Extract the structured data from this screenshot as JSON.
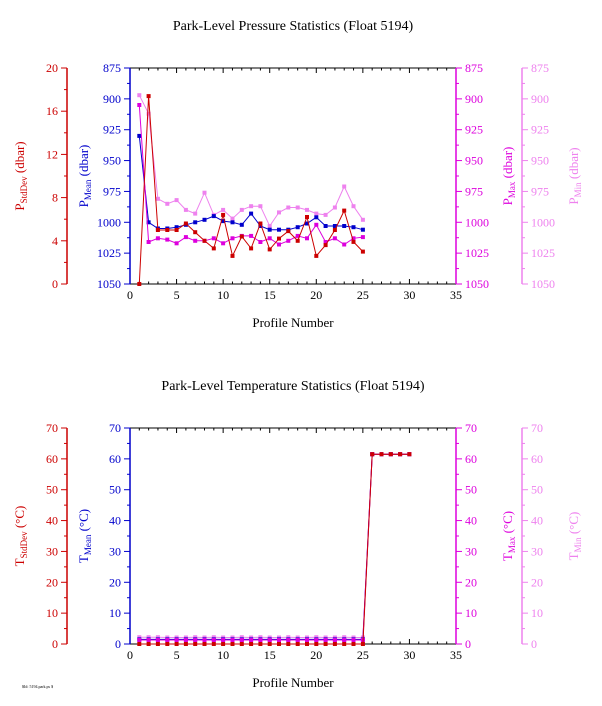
{
  "footer": "$Id: 5194.park.ps $",
  "chart_data": [
    {
      "type": "line",
      "title": "Park-Level Pressure Statistics (Float 5194)",
      "xlabel": "Profile Number",
      "xlim": [
        0,
        35
      ],
      "xticks": [
        0,
        5,
        10,
        15,
        20,
        25,
        30,
        35
      ],
      "axes": [
        {
          "key": "std",
          "label_main": "P",
          "label_sub": "StdDev",
          "label_unit": " (dbar)",
          "color": "#cc0000",
          "lim": [
            0,
            20
          ],
          "ticks": [
            0,
            4,
            8,
            12,
            16,
            20
          ],
          "reversed": false
        },
        {
          "key": "mean",
          "label_main": "P",
          "label_sub": "Mean",
          "label_unit": " (dbar)",
          "color": "#0000cc",
          "lim": [
            875,
            1050
          ],
          "ticks": [
            875,
            900,
            925,
            950,
            975,
            1000,
            1025,
            1050
          ],
          "reversed": true
        },
        {
          "key": "max",
          "label_main": "P",
          "label_sub": "Max",
          "label_unit": " (dbar)",
          "color": "#dd00dd",
          "lim": [
            875,
            1050
          ],
          "ticks": [
            875,
            900,
            925,
            950,
            975,
            1000,
            1025,
            1050
          ],
          "reversed": true
        },
        {
          "key": "min",
          "label_main": "P",
          "label_sub": "Min",
          "label_unit": " (dbar)",
          "color": "#ee82ee",
          "lim": [
            875,
            1050
          ],
          "ticks": [
            875,
            900,
            925,
            950,
            975,
            1000,
            1025,
            1050
          ],
          "reversed": true
        }
      ],
      "series": [
        {
          "axis": "min",
          "color": "#ee82ee",
          "x": [
            1,
            2,
            3,
            4,
            5,
            6,
            7,
            8,
            9,
            10,
            11,
            12,
            13,
            14,
            15,
            16,
            17,
            18,
            19,
            20,
            21,
            22,
            23,
            24,
            25
          ],
          "y": [
            897,
            912,
            981,
            985,
            982,
            990,
            993,
            976,
            994,
            990,
            997,
            990,
            987,
            987,
            1003,
            992,
            988,
            988,
            990,
            993,
            994,
            988,
            971,
            987,
            998
          ]
        },
        {
          "axis": "mean",
          "color": "#0000cc",
          "x": [
            1,
            2,
            3,
            4,
            5,
            6,
            7,
            8,
            9,
            10,
            11,
            12,
            13,
            14,
            15,
            16,
            17,
            18,
            19,
            20,
            21,
            22,
            23,
            24,
            25
          ],
          "y": [
            930,
            1000,
            1005,
            1005,
            1004,
            1002,
            1000,
            998,
            995,
            999,
            1000,
            1002,
            993,
            1003,
            1006,
            1006,
            1006,
            1004,
            1001,
            996,
            1003,
            1003,
            1003,
            1004,
            1006
          ]
        },
        {
          "axis": "max",
          "color": "#dd00dd",
          "x": [
            1,
            2,
            3,
            4,
            5,
            6,
            7,
            8,
            9,
            10,
            11,
            12,
            13,
            14,
            15,
            16,
            17,
            18,
            19,
            20,
            21,
            22,
            23,
            24,
            25
          ],
          "y": [
            905,
            1016,
            1013,
            1014,
            1017,
            1012,
            1015,
            1015,
            1013,
            1017,
            1013,
            1011,
            1011,
            1016,
            1013,
            1018,
            1015,
            1011,
            1013,
            1002,
            1016,
            1013,
            1018,
            1013,
            1012
          ]
        },
        {
          "axis": "std",
          "color": "#cc0000",
          "x": [
            1,
            2,
            3,
            4,
            5,
            6,
            7,
            8,
            9,
            10,
            11,
            12,
            13,
            14,
            15,
            16,
            17,
            18,
            19,
            20,
            21,
            22,
            23,
            24,
            25
          ],
          "y": [
            0,
            17.4,
            5.0,
            5.0,
            5.0,
            5.6,
            4.8,
            4.0,
            3.3,
            6.4,
            2.6,
            4.4,
            3.3,
            5.6,
            3.2,
            4.2,
            4.9,
            4.0,
            6.2,
            2.6,
            3.6,
            5.0,
            6.8,
            3.9,
            3.0
          ]
        }
      ]
    },
    {
      "type": "line",
      "title": "Park-Level Temperature Statistics (Float 5194)",
      "xlabel": "Profile Number",
      "xlim": [
        0,
        35
      ],
      "xticks": [
        0,
        5,
        10,
        15,
        20,
        25,
        30,
        35
      ],
      "axes": [
        {
          "key": "std",
          "label_main": "T",
          "label_sub": "StdDev",
          "label_unit": " (°C)",
          "color": "#cc0000",
          "lim": [
            0,
            70
          ],
          "ticks": [
            0,
            10,
            20,
            30,
            40,
            50,
            60,
            70
          ],
          "reversed": false
        },
        {
          "key": "mean",
          "label_main": "T",
          "label_sub": "Mean",
          "label_unit": " (°C)",
          "color": "#0000cc",
          "lim": [
            0,
            70
          ],
          "ticks": [
            0,
            10,
            20,
            30,
            40,
            50,
            60,
            70
          ],
          "reversed": false
        },
        {
          "key": "max",
          "label_main": "T",
          "label_sub": "Max",
          "label_unit": " (°C)",
          "color": "#dd00dd",
          "lim": [
            0,
            70
          ],
          "ticks": [
            0,
            10,
            20,
            30,
            40,
            50,
            60,
            70
          ],
          "reversed": false
        },
        {
          "key": "min",
          "label_main": "T",
          "label_sub": "Min",
          "label_unit": " (°C)",
          "color": "#ee82ee",
          "lim": [
            0,
            70
          ],
          "ticks": [
            0,
            10,
            20,
            30,
            40,
            50,
            60,
            70
          ],
          "reversed": false
        }
      ],
      "series": [
        {
          "axis": "min",
          "color": "#ee82ee",
          "x": [
            1,
            2,
            3,
            4,
            5,
            6,
            7,
            8,
            9,
            10,
            11,
            12,
            13,
            14,
            15,
            16,
            17,
            18,
            19,
            20,
            21,
            22,
            23,
            24,
            25,
            26,
            27,
            28,
            29,
            30
          ],
          "y": [
            2.2,
            2.2,
            2.2,
            2.1,
            2.1,
            2.1,
            2.2,
            2.1,
            2.2,
            2.1,
            2.1,
            2.2,
            2.1,
            2.2,
            2.1,
            2.1,
            2.2,
            2.1,
            2.1,
            2.2,
            2.1,
            2.1,
            2.2,
            2.1,
            2.1,
            61.5,
            61.5,
            61.5,
            61.5,
            61.5
          ]
        },
        {
          "axis": "mean",
          "color": "#0000cc",
          "x": [
            1,
            2,
            3,
            4,
            5,
            6,
            7,
            8,
            9,
            10,
            11,
            12,
            13,
            14,
            15,
            16,
            17,
            18,
            19,
            20,
            21,
            22,
            23,
            24,
            25,
            26,
            27,
            28,
            29,
            30
          ],
          "y": [
            1.5,
            1.5,
            1.5,
            1.5,
            1.5,
            1.5,
            1.5,
            1.5,
            1.5,
            1.5,
            1.5,
            1.5,
            1.5,
            1.5,
            1.5,
            1.5,
            1.5,
            1.5,
            1.5,
            1.5,
            1.5,
            1.5,
            1.5,
            1.5,
            1.5,
            61.5,
            61.5,
            61.5,
            61.5,
            61.5
          ]
        },
        {
          "axis": "max",
          "color": "#dd00dd",
          "x": [
            1,
            2,
            3,
            4,
            5,
            6,
            7,
            8,
            9,
            10,
            11,
            12,
            13,
            14,
            15,
            16,
            17,
            18,
            19,
            20,
            21,
            22,
            23,
            24,
            25,
            26,
            27,
            28,
            29,
            30
          ],
          "y": [
            1.3,
            1.3,
            1.3,
            1.3,
            1.3,
            1.3,
            1.3,
            1.3,
            1.3,
            1.3,
            1.3,
            1.3,
            1.3,
            1.3,
            1.3,
            1.3,
            1.3,
            1.3,
            1.3,
            1.3,
            1.3,
            1.3,
            1.3,
            1.3,
            1.3,
            61.5,
            61.5,
            61.5,
            61.5,
            61.5
          ]
        },
        {
          "axis": "std",
          "color": "#cc0000",
          "x": [
            1,
            2,
            3,
            4,
            5,
            6,
            7,
            8,
            9,
            10,
            11,
            12,
            13,
            14,
            15,
            16,
            17,
            18,
            19,
            20,
            21,
            22,
            23,
            24,
            25,
            26,
            27,
            28,
            29,
            30
          ],
          "y": [
            0,
            0,
            0,
            0,
            0,
            0,
            0,
            0,
            0,
            0,
            0,
            0,
            0,
            0,
            0,
            0,
            0,
            0,
            0,
            0,
            0,
            0,
            0,
            0,
            0,
            61.5,
            61.5,
            61.5,
            61.5,
            61.5
          ]
        }
      ]
    }
  ]
}
